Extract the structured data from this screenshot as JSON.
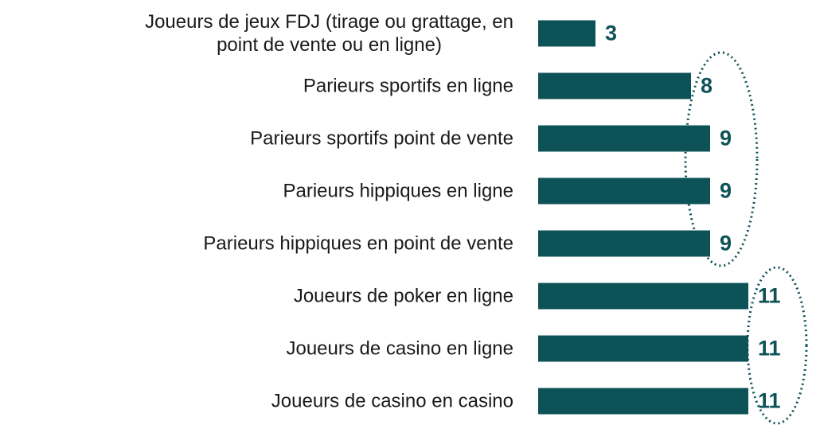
{
  "chart_data": {
    "type": "bar",
    "orientation": "horizontal",
    "categories": [
      "Joueurs de jeux FDJ (tirage ou grattage,  en\npoint de vente ou en ligne)",
      "Parieurs sportifs en ligne",
      "Parieurs sportifs point de vente",
      "Parieurs hippiques en ligne",
      "Parieurs hippiques en point de vente",
      "Joueurs de poker en ligne",
      "Joueurs de casino en ligne",
      "Joueurs de casino en casino"
    ],
    "values": [
      3,
      8,
      9,
      9,
      9,
      11,
      11,
      11
    ],
    "color": "#0d5257"
  }
}
